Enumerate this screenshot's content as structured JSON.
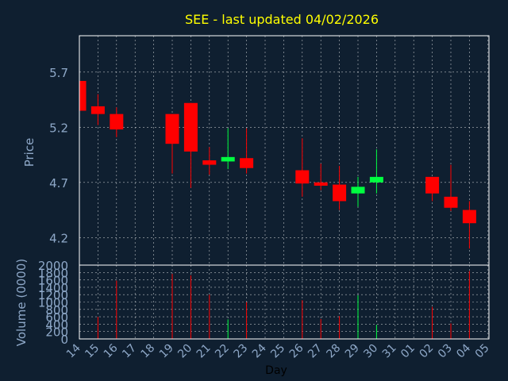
{
  "chart_data": {
    "type": "candlestick",
    "title": "SEE - last updated 04/02/2026",
    "xlabel": "Day",
    "ylabel": "Price",
    "volume_label": "Volume (0000)",
    "x_ticks": [
      "14",
      "15",
      "16",
      "17",
      "18",
      "19",
      "20",
      "21",
      "22",
      "23",
      "24",
      "25",
      "26",
      "27",
      "28",
      "29",
      "30",
      "31",
      "01",
      "02",
      "03",
      "04",
      "05"
    ],
    "price_ticks": [
      4.2,
      4.7,
      5.2,
      5.7
    ],
    "price_ylim": [
      3.95,
      6.03
    ],
    "volume_ticks": [
      0,
      200,
      400,
      600,
      800,
      1000,
      1200,
      1400,
      1600,
      1800,
      2000
    ],
    "volume_ylim": [
      0,
      2000
    ],
    "grid": true,
    "colors": {
      "background": "#0f1f30",
      "title": "#ffff00",
      "axis_text": "#8ea8c8",
      "up": "#00ff40",
      "down": "#ff0000",
      "grid": "#ffffff",
      "frame": "#ffffff"
    },
    "candles": [
      {
        "x": 0,
        "open": 5.62,
        "high": 5.62,
        "low": 5.35,
        "close": 5.35,
        "volume": 0
      },
      {
        "x": 1,
        "open": 5.39,
        "high": 5.5,
        "low": 5.22,
        "close": 5.32,
        "volume": 600
      },
      {
        "x": 2,
        "open": 5.32,
        "high": 5.38,
        "low": 5.11,
        "close": 5.18,
        "volume": 1580
      },
      {
        "x": 5,
        "open": 5.32,
        "high": 5.32,
        "low": 4.78,
        "close": 5.05,
        "volume": 1760
      },
      {
        "x": 6,
        "open": 5.42,
        "high": 5.42,
        "low": 4.65,
        "close": 4.98,
        "volume": 1720
      },
      {
        "x": 7,
        "open": 4.9,
        "high": 5.02,
        "low": 4.77,
        "close": 4.86,
        "volume": 1200
      },
      {
        "x": 8,
        "open": 4.89,
        "high": 5.19,
        "low": 4.82,
        "close": 4.93,
        "volume": 530
      },
      {
        "x": 9,
        "open": 4.92,
        "high": 5.19,
        "low": 4.78,
        "close": 4.83,
        "volume": 1000
      },
      {
        "x": 12,
        "open": 4.81,
        "high": 5.1,
        "low": 4.57,
        "close": 4.69,
        "volume": 1050
      },
      {
        "x": 13,
        "open": 4.7,
        "high": 4.87,
        "low": 4.63,
        "close": 4.67,
        "volume": 540
      },
      {
        "x": 14,
        "open": 4.68,
        "high": 4.85,
        "low": 4.45,
        "close": 4.53,
        "volume": 620
      },
      {
        "x": 15,
        "open": 4.6,
        "high": 4.75,
        "low": 4.48,
        "close": 4.66,
        "volume": 1180
      },
      {
        "x": 16,
        "open": 4.7,
        "high": 5.0,
        "low": 4.6,
        "close": 4.75,
        "volume": 380
      },
      {
        "x": 19,
        "open": 4.75,
        "high": 4.75,
        "low": 4.53,
        "close": 4.6,
        "volume": 870
      },
      {
        "x": 20,
        "open": 4.57,
        "high": 4.86,
        "low": 4.44,
        "close": 4.47,
        "volume": 420
      },
      {
        "x": 21,
        "open": 4.45,
        "high": 4.53,
        "low": 4.1,
        "close": 4.33,
        "volume": 1840
      }
    ]
  }
}
